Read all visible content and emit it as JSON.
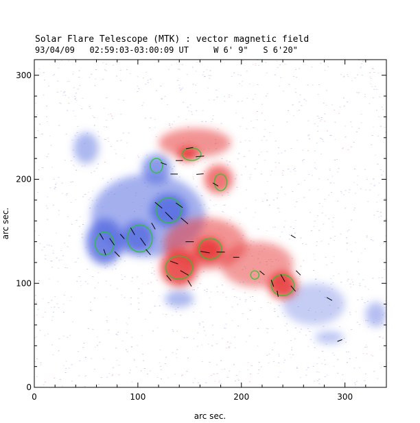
{
  "title": "Solar Flare Telescope (MTK) : vector magnetic field",
  "subtitle": "93/04/09   02:59:03-03:00:09 UT     W 6' 9\"   S 6'20\"",
  "chart_data": {
    "type": "heatmap",
    "xlabel": "arc sec.",
    "ylabel": "arc sec.",
    "xlim": [
      0,
      340
    ],
    "ylim": [
      0,
      315
    ],
    "xticks": [
      "0",
      "100",
      "200",
      "300"
    ],
    "yticks": [
      "0",
      "100",
      "200",
      "300"
    ],
    "xtick_values": [
      0,
      100,
      200,
      300
    ],
    "ytick_values": [
      0,
      100,
      200,
      300
    ],
    "colors": {
      "negative_polarity": "#5a6fe0",
      "positive_polarity": "#e83a3a",
      "contour": "#22cc22",
      "vector": "#000000"
    },
    "positive_regions": [
      {
        "x": 155,
        "y": 235,
        "rx": 35,
        "ry": 14,
        "strength": 0.55
      },
      {
        "x": 148,
        "y": 224,
        "rx": 10,
        "ry": 7,
        "strength": 0.9
      },
      {
        "x": 178,
        "y": 200,
        "rx": 14,
        "ry": 14,
        "strength": 0.7
      },
      {
        "x": 165,
        "y": 138,
        "rx": 40,
        "ry": 25,
        "strength": 0.55
      },
      {
        "x": 140,
        "y": 115,
        "rx": 18,
        "ry": 18,
        "strength": 0.85
      },
      {
        "x": 168,
        "y": 132,
        "rx": 14,
        "ry": 12,
        "strength": 0.9
      },
      {
        "x": 215,
        "y": 118,
        "rx": 35,
        "ry": 22,
        "strength": 0.5
      },
      {
        "x": 240,
        "y": 98,
        "rx": 14,
        "ry": 13,
        "strength": 0.9
      }
    ],
    "negative_regions": [
      {
        "x": 110,
        "y": 165,
        "rx": 55,
        "ry": 40,
        "strength": 0.55
      },
      {
        "x": 68,
        "y": 140,
        "rx": 18,
        "ry": 22,
        "strength": 0.85
      },
      {
        "x": 100,
        "y": 145,
        "rx": 15,
        "ry": 15,
        "strength": 0.85
      },
      {
        "x": 130,
        "y": 170,
        "rx": 18,
        "ry": 16,
        "strength": 0.9
      },
      {
        "x": 118,
        "y": 210,
        "rx": 14,
        "ry": 14,
        "strength": 0.7
      },
      {
        "x": 50,
        "y": 230,
        "rx": 12,
        "ry": 15,
        "strength": 0.5
      },
      {
        "x": 140,
        "y": 85,
        "rx": 14,
        "ry": 8,
        "strength": 0.5
      },
      {
        "x": 270,
        "y": 80,
        "rx": 30,
        "ry": 20,
        "strength": 0.35
      },
      {
        "x": 330,
        "y": 70,
        "rx": 10,
        "ry": 12,
        "strength": 0.45
      },
      {
        "x": 285,
        "y": 48,
        "rx": 14,
        "ry": 6,
        "strength": 0.4
      }
    ],
    "contours": [
      {
        "x": 152,
        "y": 224,
        "rx": 9,
        "ry": 6
      },
      {
        "x": 118,
        "y": 213,
        "rx": 6,
        "ry": 7
      },
      {
        "x": 180,
        "y": 197,
        "rx": 6,
        "ry": 8
      },
      {
        "x": 130,
        "y": 170,
        "rx": 12,
        "ry": 12
      },
      {
        "x": 102,
        "y": 143,
        "rx": 12,
        "ry": 13
      },
      {
        "x": 68,
        "y": 138,
        "rx": 9,
        "ry": 11
      },
      {
        "x": 170,
        "y": 133,
        "rx": 11,
        "ry": 10
      },
      {
        "x": 140,
        "y": 115,
        "rx": 13,
        "ry": 11
      },
      {
        "x": 240,
        "y": 98,
        "rx": 11,
        "ry": 10
      },
      {
        "x": 213,
        "y": 108,
        "rx": 4,
        "ry": 4
      }
    ],
    "vectors": [
      {
        "x": 65,
        "y": 145,
        "angle": -60,
        "length": 7
      },
      {
        "x": 75,
        "y": 140,
        "angle": -55,
        "length": 8
      },
      {
        "x": 68,
        "y": 130,
        "angle": -70,
        "length": 6
      },
      {
        "x": 80,
        "y": 128,
        "angle": -45,
        "length": 7
      },
      {
        "x": 95,
        "y": 150,
        "angle": -60,
        "length": 8
      },
      {
        "x": 105,
        "y": 140,
        "angle": -55,
        "length": 9
      },
      {
        "x": 110,
        "y": 130,
        "angle": -50,
        "length": 7
      },
      {
        "x": 120,
        "y": 175,
        "angle": -40,
        "length": 9
      },
      {
        "x": 130,
        "y": 165,
        "angle": -45,
        "length": 10
      },
      {
        "x": 140,
        "y": 175,
        "angle": -35,
        "length": 8
      },
      {
        "x": 145,
        "y": 160,
        "angle": -40,
        "length": 9
      },
      {
        "x": 150,
        "y": 230,
        "angle": 10,
        "length": 7
      },
      {
        "x": 160,
        "y": 222,
        "angle": 5,
        "length": 8
      },
      {
        "x": 140,
        "y": 218,
        "angle": 0,
        "length": 7
      },
      {
        "x": 125,
        "y": 215,
        "angle": -20,
        "length": 6
      },
      {
        "x": 135,
        "y": 205,
        "angle": 0,
        "length": 7
      },
      {
        "x": 160,
        "y": 205,
        "angle": 5,
        "length": 7
      },
      {
        "x": 175,
        "y": 195,
        "angle": -30,
        "length": 6
      },
      {
        "x": 150,
        "y": 140,
        "angle": 0,
        "length": 8
      },
      {
        "x": 165,
        "y": 130,
        "angle": -10,
        "length": 9
      },
      {
        "x": 180,
        "y": 130,
        "angle": 0,
        "length": 8
      },
      {
        "x": 135,
        "y": 120,
        "angle": -20,
        "length": 8
      },
      {
        "x": 145,
        "y": 110,
        "angle": -30,
        "length": 9
      },
      {
        "x": 130,
        "y": 105,
        "angle": -50,
        "length": 7
      },
      {
        "x": 150,
        "y": 100,
        "angle": -60,
        "length": 7
      },
      {
        "x": 230,
        "y": 100,
        "angle": -70,
        "length": 7
      },
      {
        "x": 240,
        "y": 105,
        "angle": -60,
        "length": 8
      },
      {
        "x": 250,
        "y": 95,
        "angle": -50,
        "length": 7
      },
      {
        "x": 235,
        "y": 90,
        "angle": -80,
        "length": 6
      },
      {
        "x": 220,
        "y": 110,
        "angle": -40,
        "length": 6
      },
      {
        "x": 255,
        "y": 110,
        "angle": -45,
        "length": 6
      },
      {
        "x": 285,
        "y": 85,
        "angle": -30,
        "length": 6
      },
      {
        "x": 295,
        "y": 45,
        "angle": 20,
        "length": 5
      },
      {
        "x": 250,
        "y": 145,
        "angle": -30,
        "length": 5
      },
      {
        "x": 195,
        "y": 125,
        "angle": 0,
        "length": 6
      },
      {
        "x": 115,
        "y": 155,
        "angle": -60,
        "length": 7
      },
      {
        "x": 85,
        "y": 145,
        "angle": -50,
        "length": 6
      }
    ]
  }
}
